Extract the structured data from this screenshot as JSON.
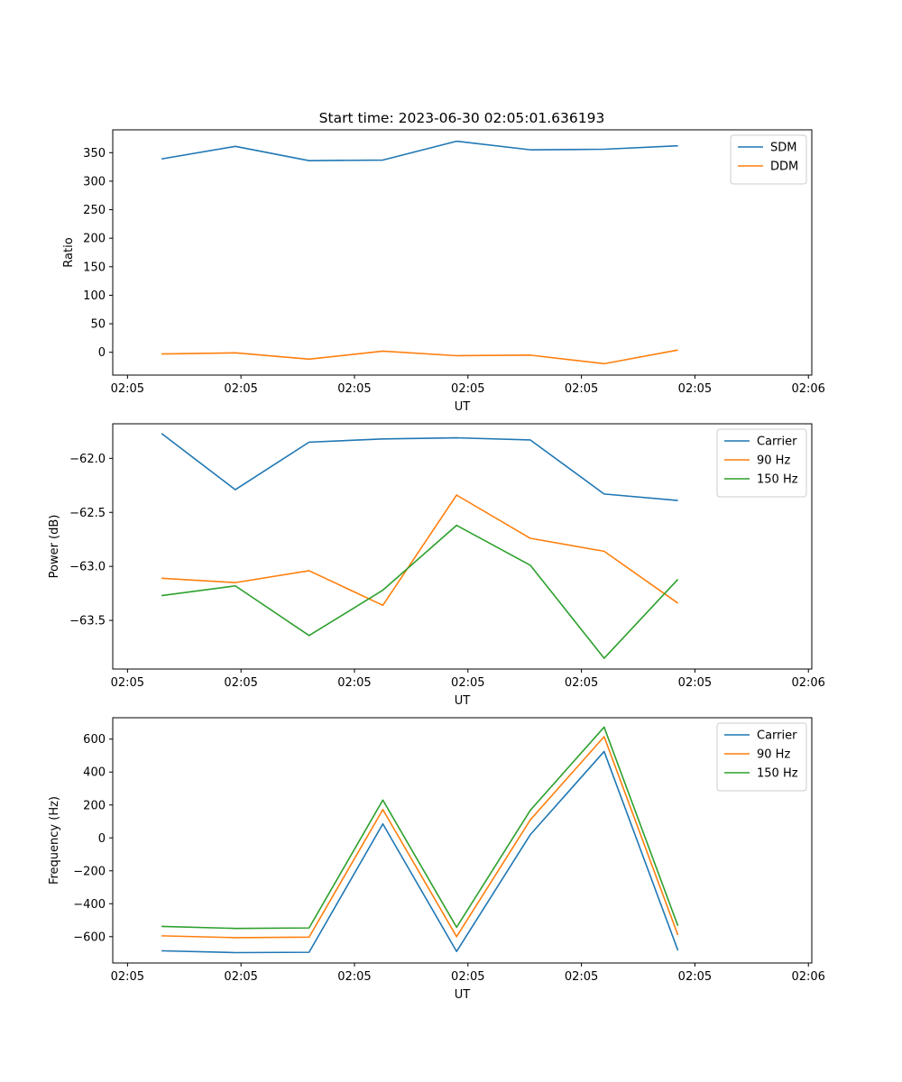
{
  "figure": {
    "title": "Start time: 2023-06-30 02:05:01.636193",
    "colors": {
      "blue": "#1f77b4",
      "orange": "#ff7f0e",
      "green": "#2ca02c"
    }
  },
  "chart_data": [
    {
      "type": "line",
      "title": "Start time: 2023-06-30 02:05:01.636193",
      "xlabel": "UT",
      "ylabel": "Ratio",
      "x": [
        0.3,
        0.95,
        1.6,
        2.25,
        2.9,
        3.55,
        4.2,
        4.85
      ],
      "x_ticks": [
        0,
        1,
        2,
        3,
        4,
        5,
        6
      ],
      "x_tick_labels": [
        "02:05",
        "02:05",
        "02:05",
        "02:05",
        "02:05",
        "02:05",
        "02:06"
      ],
      "xlim": [
        -0.13,
        6.03
      ],
      "y_ticks": [
        0,
        50,
        100,
        150,
        200,
        250,
        300,
        350
      ],
      "ylim": [
        -40,
        390
      ],
      "legend_position": "top-right",
      "grid": false,
      "series": [
        {
          "name": "SDM",
          "color": "#1f77b4",
          "values": [
            339,
            361,
            336,
            337,
            370,
            355,
            356,
            362
          ]
        },
        {
          "name": "DDM",
          "color": "#ff7f0e",
          "values": [
            -3,
            -1,
            -12,
            2,
            -6,
            -5,
            -20,
            4
          ]
        }
      ]
    },
    {
      "type": "line",
      "title": "",
      "xlabel": "UT",
      "ylabel": "Power (dB)",
      "x": [
        0.3,
        0.95,
        1.6,
        2.25,
        2.9,
        3.55,
        4.2,
        4.85
      ],
      "x_ticks": [
        0,
        1,
        2,
        3,
        4,
        5,
        6
      ],
      "x_tick_labels": [
        "02:05",
        "02:05",
        "02:05",
        "02:05",
        "02:05",
        "02:05",
        "02:06"
      ],
      "xlim": [
        -0.13,
        6.03
      ],
      "y_ticks": [
        -62.0,
        -62.5,
        -63.0,
        -63.5
      ],
      "y_tick_labels": [
        "−62.0",
        "−62.5",
        "−63.0",
        "−63.5"
      ],
      "ylim": [
        -63.95,
        -61.68
      ],
      "legend_position": "top-right",
      "grid": false,
      "series": [
        {
          "name": "Carrier",
          "color": "#1f77b4",
          "values": [
            -61.77,
            -62.29,
            -61.85,
            -61.82,
            -61.81,
            -61.83,
            -62.33,
            -62.39
          ]
        },
        {
          "name": "90 Hz",
          "color": "#ff7f0e",
          "values": [
            -63.11,
            -63.15,
            -63.04,
            -63.36,
            -62.34,
            -62.74,
            -62.86,
            -63.34
          ]
        },
        {
          "name": "150 Hz",
          "color": "#2ca02c",
          "values": [
            -63.27,
            -63.18,
            -63.64,
            -63.22,
            -62.62,
            -62.99,
            -63.85,
            -63.12
          ]
        }
      ]
    },
    {
      "type": "line",
      "title": "",
      "xlabel": "UT",
      "ylabel": "Frequency (Hz)",
      "x": [
        0.3,
        0.95,
        1.6,
        2.25,
        2.9,
        3.55,
        4.2,
        4.85
      ],
      "x_ticks": [
        0,
        1,
        2,
        3,
        4,
        5,
        6
      ],
      "x_tick_labels": [
        "02:05",
        "02:05",
        "02:05",
        "02:05",
        "02:05",
        "02:05",
        "02:06"
      ],
      "xlim": [
        -0.13,
        6.03
      ],
      "y_ticks": [
        -600,
        -400,
        -200,
        0,
        200,
        400,
        600
      ],
      "y_tick_labels": [
        "−600",
        "−400",
        "−200",
        "0",
        "200",
        "400",
        "600"
      ],
      "ylim": [
        -760,
        730
      ],
      "legend_position": "top-right",
      "grid": false,
      "series": [
        {
          "name": "Carrier",
          "color": "#1f77b4",
          "values": [
            -686,
            -697,
            -695,
            85,
            -690,
            20,
            525,
            -683
          ]
        },
        {
          "name": "90 Hz",
          "color": "#ff7f0e",
          "values": [
            -595,
            -606,
            -603,
            172,
            -600,
            110,
            615,
            -590
          ]
        },
        {
          "name": "150 Hz",
          "color": "#2ca02c",
          "values": [
            -538,
            -550,
            -547,
            230,
            -543,
            168,
            673,
            -534
          ]
        }
      ]
    }
  ]
}
